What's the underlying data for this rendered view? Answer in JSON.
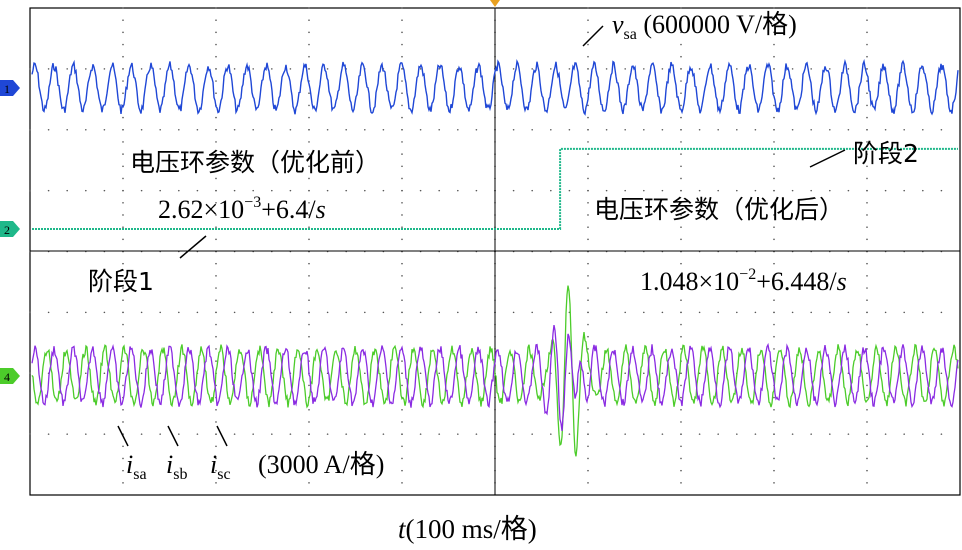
{
  "chart_data": {
    "type": "line",
    "xlabel": {
      "var": "t",
      "rest": "(100 ms/格)"
    },
    "grid": true,
    "channels": [
      {
        "marker": "1",
        "color": "#1f47d6"
      },
      {
        "marker": "2",
        "color": "#1fb88a"
      },
      {
        "marker": "4",
        "color": "#4ccc2a"
      }
    ],
    "series": [
      {
        "name": "v_sa",
        "color": "#1f47d6",
        "channel": "1",
        "waveform": "sine",
        "cycles": 48,
        "amplitude_divs": 0.5
      },
      {
        "name": "阶段",
        "color": "#1fb88a",
        "channel": "2",
        "waveform": "step",
        "step_at_div": 5.7,
        "low_level_div": 0,
        "high_level_div": 1.37
      },
      {
        "name": "i_sa",
        "color": "#8a2be2",
        "channel": "4",
        "waveform": "sine",
        "cycles": 48,
        "amplitude_divs": 0.55
      },
      {
        "name": "i_sb",
        "color": "#4ccc2a",
        "channel": "4",
        "waveform": "sine",
        "cycles": 48,
        "amplitude_divs": 0.55
      }
    ],
    "annotations": {
      "vsa": {
        "var": "v",
        "sub": "sa",
        "rest": " (600000 V/格)"
      },
      "before_title": "电压环参数（优化前）",
      "before_formula": {
        "base": "2.62×10",
        "exp": "−3",
        "tail": "+6.4/",
        "var": "s"
      },
      "after_title": "电压环参数（优化后）",
      "after_formula": {
        "base": "1.048×10",
        "exp": "−2",
        "tail": "+6.448/",
        "var": "s"
      },
      "stage1": "阶段1",
      "stage2": "阶段2",
      "currents": [
        {
          "var": "i",
          "sub": "sa"
        },
        {
          "var": "i",
          "sub": "sb"
        },
        {
          "var": "i",
          "sub": "sc"
        }
      ],
      "current_scale": "(3000 A/格)"
    }
  }
}
